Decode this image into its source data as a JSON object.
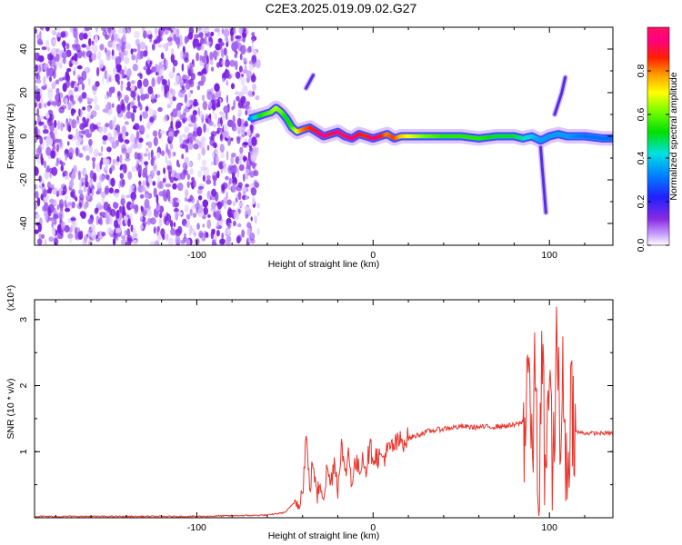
{
  "title": "C2E3.2025.019.09.02.G27",
  "chart_data": [
    {
      "type": "heatmap",
      "xlabel": "Height of straight line (km)",
      "ylabel": "Frequency (Hz)",
      "xlim": [
        -192,
        136
      ],
      "ylim": [
        -50,
        50
      ],
      "x_ticks": [
        -100,
        0,
        100
      ],
      "y_ticks": [
        -40,
        -20,
        0,
        20,
        40
      ],
      "noise_region_x": [
        -192,
        -65
      ],
      "colorbar": {
        "label": "Normalized spectral amplitude",
        "range": [
          0,
          1
        ],
        "ticks": [
          "0.0",
          "0.2",
          "0.4",
          "0.6",
          "0.8"
        ],
        "colormap": "rainbow"
      },
      "ridge": {
        "x": [
          -70,
          -66,
          -62,
          -58,
          -55,
          -52,
          -49,
          -46,
          -43,
          -40,
          -36,
          -32,
          -28,
          -24,
          -20,
          -16,
          -12,
          -8,
          -4,
          0,
          4,
          8,
          12,
          16,
          20,
          30,
          40,
          50,
          60,
          70,
          80,
          85,
          90,
          95,
          100,
          105,
          110,
          120,
          130,
          136
        ],
        "y": [
          8,
          9,
          10,
          11,
          13,
          11,
          8,
          4,
          2,
          3,
          4,
          2,
          0,
          1,
          2,
          0,
          -1,
          1,
          0,
          -1,
          0,
          1,
          -1,
          0,
          0,
          0,
          0,
          0,
          -1,
          0,
          0,
          -1,
          0,
          -2,
          0,
          1,
          0,
          0,
          -1,
          -1
        ],
        "amplitude": [
          0.3,
          0.45,
          0.55,
          0.6,
          0.65,
          0.6,
          0.5,
          0.55,
          0.7,
          0.8,
          0.85,
          0.9,
          0.95,
          0.9,
          0.95,
          1.0,
          0.95,
          0.9,
          0.85,
          0.95,
          0.9,
          0.8,
          0.85,
          0.75,
          0.7,
          0.6,
          0.55,
          0.55,
          0.55,
          0.5,
          0.5,
          0.45,
          0.4,
          0.35,
          0.35,
          0.35,
          0.35,
          0.3,
          0.3,
          0.3
        ]
      },
      "side_branches": [
        {
          "x": [
            -38,
            -36,
            -34
          ],
          "y": [
            22,
            25,
            28
          ]
        },
        {
          "x": [
            103,
            105,
            107,
            109
          ],
          "y": [
            10,
            15,
            20,
            27
          ]
        },
        {
          "x": [
            95,
            96,
            97,
            98
          ],
          "y": [
            -5,
            -15,
            -25,
            -35
          ]
        }
      ]
    },
    {
      "type": "line",
      "xlabel": "Height of straight line (km)",
      "ylabel": "SNR (10 * v/v)",
      "y_scale_label": "(x10⁴)",
      "xlim": [
        -192,
        136
      ],
      "ylim": [
        0,
        3.3
      ],
      "x_ticks": [
        -100,
        0,
        100
      ],
      "y_ticks": [
        1,
        2,
        3
      ],
      "color": "#e8322a",
      "series": [
        {
          "x": [
            -192,
            -150,
            -100,
            -80,
            -60,
            -50,
            -45,
            -40,
            -38,
            -36,
            -34,
            -32,
            -30,
            -28,
            -26,
            -24,
            -22,
            -20,
            -18,
            -16,
            -14,
            -12,
            -10,
            -8,
            -6,
            -4,
            -2,
            0,
            5,
            10,
            15,
            20,
            25,
            30,
            40,
            50,
            60,
            70,
            80,
            85,
            86,
            88,
            90,
            92,
            94,
            96,
            98,
            100,
            102,
            104,
            106,
            108,
            110,
            112,
            115,
            120,
            130,
            136
          ],
          "y": [
            0.02,
            0.02,
            0.02,
            0.03,
            0.04,
            0.08,
            0.22,
            0.35,
            1.25,
            0.45,
            0.85,
            0.3,
            0.55,
            0.35,
            0.75,
            0.5,
            0.9,
            0.45,
            1.15,
            0.6,
            1.0,
            0.55,
            0.85,
            0.7,
            0.95,
            0.75,
            1.05,
            0.95,
            0.9,
            1.05,
            1.15,
            1.2,
            1.25,
            1.3,
            1.35,
            1.38,
            1.37,
            1.38,
            1.4,
            1.45,
            1.3,
            2.7,
            0.7,
            2.3,
            0.3,
            2.4,
            0.2,
            2.6,
            0.15,
            3.2,
            0.9,
            2.2,
            0.3,
            1.9,
            1.3,
            1.28,
            1.28,
            1.28
          ]
        }
      ]
    }
  ]
}
